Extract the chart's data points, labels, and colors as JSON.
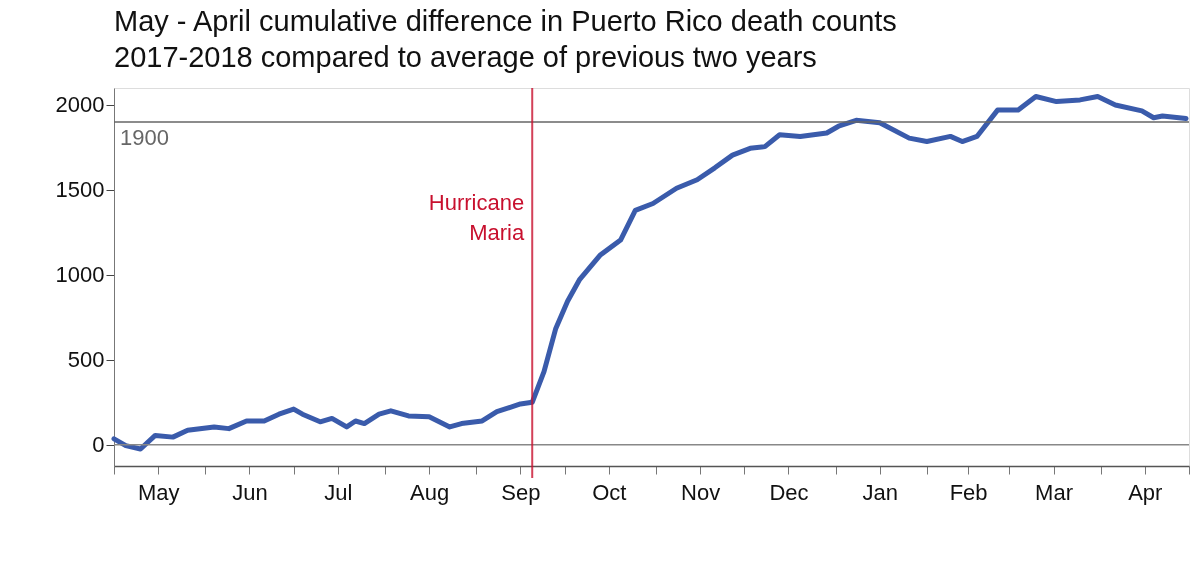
{
  "chart_data": {
    "type": "line",
    "title": "May - April cumulative difference in Puerto Rico death counts\n2017-2018 compared to average of previous two years",
    "x": [
      "2017-05-01",
      "2017-05-05",
      "2017-05-10",
      "2017-05-15",
      "2017-05-21",
      "2017-05-26",
      "2017-06-04",
      "2017-06-09",
      "2017-06-15",
      "2017-06-21",
      "2017-06-26",
      "2017-07-01",
      "2017-07-04",
      "2017-07-10",
      "2017-07-14",
      "2017-07-19",
      "2017-07-22",
      "2017-07-25",
      "2017-07-30",
      "2017-08-03",
      "2017-08-09",
      "2017-08-16",
      "2017-08-23",
      "2017-08-27",
      "2017-09-03",
      "2017-09-08",
      "2017-09-16",
      "2017-09-20",
      "2017-09-24",
      "2017-09-28",
      "2017-10-02",
      "2017-10-06",
      "2017-10-13",
      "2017-10-20",
      "2017-10-25",
      "2017-10-31",
      "2017-11-08",
      "2017-11-15",
      "2017-11-21",
      "2017-11-27",
      "2017-12-03",
      "2017-12-08",
      "2017-12-13",
      "2017-12-20",
      "2017-12-29",
      "2018-01-02",
      "2018-01-08",
      "2018-01-16",
      "2018-01-26",
      "2018-02-01",
      "2018-02-09",
      "2018-02-13",
      "2018-02-18",
      "2018-02-25",
      "2018-03-04",
      "2018-03-10",
      "2018-03-17",
      "2018-03-25",
      "2018-03-31",
      "2018-04-06",
      "2018-04-15",
      "2018-04-19",
      "2018-04-22",
      "2018-04-30"
    ],
    "series": [
      {
        "color": "#3a5bab",
        "values": [
          35,
          -5,
          -25,
          55,
          45,
          85,
          105,
          95,
          140,
          140,
          180,
          210,
          180,
          135,
          155,
          105,
          140,
          125,
          180,
          200,
          170,
          165,
          105,
          125,
          140,
          195,
          240,
          250,
          430,
          685,
          845,
          970,
          1115,
          1205,
          1380,
          1420,
          1510,
          1560,
          1630,
          1705,
          1745,
          1755,
          1825,
          1815,
          1835,
          1875,
          1910,
          1895,
          1805,
          1785,
          1815,
          1785,
          1815,
          1970,
          1970,
          2050,
          2020,
          2030,
          2050,
          2000,
          1965,
          1925,
          1935,
          1920
        ]
      }
    ],
    "xlim": [
      "2017-05-01",
      "2018-05-01"
    ],
    "xticks": [
      {
        "value": "2017-05-01",
        "label": null
      },
      {
        "value": "2017-05-16",
        "label": "May"
      },
      {
        "value": "2017-06-01",
        "label": null
      },
      {
        "value": "2017-06-16",
        "label": "Jun"
      },
      {
        "value": "2017-07-01",
        "label": null
      },
      {
        "value": "2017-07-16",
        "label": "Jul"
      },
      {
        "value": "2017-08-01",
        "label": null
      },
      {
        "value": "2017-08-16",
        "label": "Aug"
      },
      {
        "value": "2017-09-01",
        "label": null
      },
      {
        "value": "2017-09-16",
        "label": "Sep"
      },
      {
        "value": "2017-10-01",
        "label": null
      },
      {
        "value": "2017-10-16",
        "label": "Oct"
      },
      {
        "value": "2017-11-01",
        "label": null
      },
      {
        "value": "2017-11-16",
        "label": "Nov"
      },
      {
        "value": "2017-12-01",
        "label": null
      },
      {
        "value": "2017-12-16",
        "label": "Dec"
      },
      {
        "value": "2018-01-01",
        "label": null
      },
      {
        "value": "2018-01-16",
        "label": "Jan"
      },
      {
        "value": "2018-02-01",
        "label": null
      },
      {
        "value": "2018-02-15",
        "label": "Feb"
      },
      {
        "value": "2018-03-01",
        "label": null
      },
      {
        "value": "2018-03-16",
        "label": "Mar"
      },
      {
        "value": "2018-04-01",
        "label": null
      },
      {
        "value": "2018-04-16",
        "label": "Apr"
      },
      {
        "value": "2018-05-01",
        "label": null
      }
    ],
    "ylim": [
      -125,
      2100
    ],
    "yticks": [
      0,
      500,
      1000,
      1500,
      2000
    ],
    "grid": false,
    "legend": false,
    "line_style": "solid",
    "marker": "none",
    "ref_lines": [
      {
        "axis": "y",
        "value": 0,
        "color": "#888888"
      },
      {
        "axis": "y",
        "value": 1900,
        "label": "1900",
        "color": "#666666"
      },
      {
        "axis": "x",
        "value": "2017-09-20",
        "label": "Hurricane\nMaria",
        "color": "#c8102e"
      }
    ]
  }
}
